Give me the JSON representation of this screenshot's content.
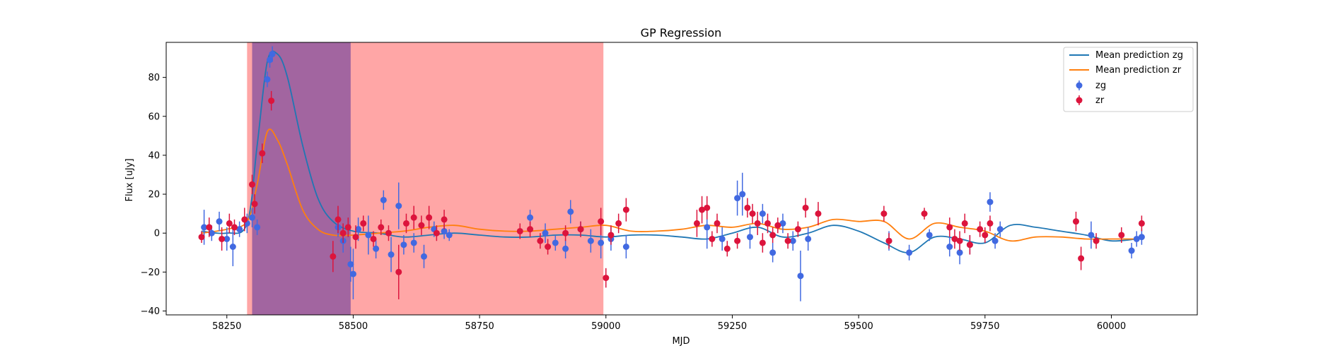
{
  "chart_data": {
    "type": "scatter",
    "title": "GP Regression",
    "xlabel": "MJD",
    "ylabel": "Flux [uJy]",
    "xlim": [
      58130,
      60170
    ],
    "ylim": [
      -42,
      98
    ],
    "x_ticks": [
      58250,
      58500,
      58750,
      59000,
      59250,
      59500,
      59750,
      60000
    ],
    "y_ticks": [
      -40,
      -20,
      0,
      20,
      40,
      60,
      80
    ],
    "legend_position": "top-right",
    "shaded_regions": [
      {
        "x0": 58290,
        "x1": 58995,
        "color": "#ff6b6b",
        "opacity": 0.6
      },
      {
        "x0": 58300,
        "x1": 58495,
        "color": "#7a4a9e",
        "opacity": 0.7
      }
    ],
    "series": [
      {
        "name": "Mean prediction zg",
        "kind": "line",
        "color": "#1f77b4",
        "x": [
          58200,
          58250,
          58290,
          58310,
          58330,
          58350,
          58370,
          58400,
          58430,
          58460,
          58500,
          58550,
          58600,
          58650,
          58700,
          58750,
          58800,
          58850,
          58900,
          58950,
          59000,
          59050,
          59100,
          59150,
          59200,
          59250,
          59300,
          59350,
          59400,
          59450,
          59500,
          59550,
          59600,
          59650,
          59700,
          59750,
          59800,
          59850,
          59900,
          59950,
          60000,
          60050
        ],
        "y": [
          1,
          0,
          5,
          45,
          88,
          92,
          80,
          45,
          18,
          6,
          1,
          0,
          -2,
          -1,
          0,
          -1,
          -2,
          -2,
          -1,
          -1,
          -2,
          -1,
          -1,
          -2,
          -3,
          0,
          3,
          -2,
          0,
          4,
          1,
          -5,
          -10,
          -2,
          -3,
          -5,
          4,
          3,
          1,
          -1,
          -4,
          -3
        ]
      },
      {
        "name": "Mean prediction zr",
        "kind": "line",
        "color": "#ff7f0e",
        "x": [
          58200,
          58250,
          58290,
          58310,
          58330,
          58350,
          58370,
          58400,
          58430,
          58460,
          58500,
          58550,
          58600,
          58650,
          58700,
          58750,
          58800,
          58850,
          58900,
          58950,
          59000,
          59050,
          59100,
          59150,
          59200,
          59250,
          59300,
          59350,
          59400,
          59450,
          59500,
          59550,
          59600,
          59650,
          59700,
          59750,
          59800,
          59850,
          59900,
          59950,
          60000,
          60050
        ],
        "y": [
          0,
          2,
          6,
          25,
          52,
          48,
          35,
          12,
          2,
          -1,
          -1,
          0,
          1,
          3,
          4,
          2,
          1,
          1,
          2,
          3,
          4,
          1,
          1,
          2,
          4,
          3,
          5,
          2,
          3,
          7,
          6,
          6,
          -3,
          5,
          3,
          1,
          -4,
          -2,
          -2,
          -3,
          -3,
          -3
        ]
      },
      {
        "name": "zg",
        "kind": "points",
        "color": "#4169e1",
        "x": [
          58205,
          58220,
          58235,
          58250,
          58262,
          58275,
          58290,
          58300,
          58310,
          58330,
          58335,
          58340,
          58470,
          58480,
          58495,
          58500,
          58510,
          58530,
          58545,
          58560,
          58575,
          58590,
          58600,
          58620,
          58640,
          58660,
          58680,
          58690,
          58850,
          58880,
          58900,
          58920,
          58930,
          58950,
          58970,
          58990,
          59010,
          59040,
          59200,
          59230,
          59260,
          59270,
          59285,
          59310,
          59330,
          59350,
          59370,
          59385,
          59400,
          59560,
          59600,
          59640,
          59680,
          59700,
          59720,
          59760,
          59770,
          59780,
          59960,
          60040,
          60050,
          60060
        ],
        "y": [
          3,
          0,
          6,
          -3,
          -7,
          2,
          5,
          8,
          3,
          79,
          89,
          92,
          3,
          -4,
          -16,
          -21,
          2,
          -1,
          -8,
          17,
          -11,
          14,
          -6,
          -5,
          -12,
          2,
          1,
          -1,
          8,
          0,
          -5,
          -8,
          11,
          2,
          -4,
          -5,
          -3,
          -7,
          3,
          -3,
          18,
          20,
          -2,
          10,
          -10,
          5,
          -4,
          -22,
          -3,
          -4,
          -10,
          -1,
          -7,
          -10,
          -6,
          16,
          -4,
          2,
          -1,
          -9,
          -3,
          -2
        ],
        "err": [
          9,
          4,
          5,
          6,
          10,
          4,
          5,
          5,
          4,
          4,
          4,
          4,
          5,
          6,
          9,
          13,
          6,
          10,
          5,
          5,
          9,
          12,
          5,
          5,
          6,
          4,
          4,
          3,
          4,
          5,
          4,
          5,
          6,
          4,
          6,
          8,
          6,
          6,
          11,
          6,
          9,
          11,
          6,
          5,
          5,
          5,
          5,
          13,
          6,
          5,
          4,
          3,
          5,
          6,
          5,
          5,
          4,
          4,
          7,
          4,
          4,
          4
        ]
      },
      {
        "name": "zr",
        "kind": "points",
        "color": "#dc143c",
        "x": [
          58200,
          58215,
          58240,
          58255,
          58265,
          58285,
          58300,
          58305,
          58320,
          58338,
          58460,
          58470,
          58480,
          58490,
          58505,
          58520,
          58540,
          58555,
          58570,
          58590,
          58605,
          58620,
          58635,
          58650,
          58665,
          58680,
          58830,
          58850,
          58870,
          58885,
          58920,
          58950,
          58990,
          59000,
          59010,
          59025,
          59040,
          59180,
          59190,
          59200,
          59210,
          59220,
          59240,
          59260,
          59280,
          59290,
          59300,
          59310,
          59320,
          59330,
          59340,
          59360,
          59380,
          59395,
          59420,
          59550,
          59560,
          59630,
          59680,
          59690,
          59700,
          59710,
          59720,
          59740,
          59750,
          59760,
          59930,
          59940,
          59970,
          60020,
          60060
        ],
        "y": [
          -2,
          3,
          -3,
          5,
          3,
          7,
          25,
          15,
          41,
          68,
          -12,
          7,
          0,
          3,
          -2,
          5,
          -3,
          3,
          0,
          -20,
          5,
          8,
          4,
          8,
          0,
          7,
          1,
          2,
          -4,
          -7,
          0,
          2,
          6,
          -23,
          -1,
          5,
          12,
          5,
          12,
          13,
          -3,
          5,
          -8,
          -4,
          13,
          10,
          5,
          -5,
          5,
          -1,
          4,
          -4,
          2,
          13,
          10,
          10,
          -4,
          10,
          3,
          -3,
          -4,
          5,
          -6,
          2,
          -1,
          5,
          6,
          -13,
          -4,
          -1,
          5
        ],
        "err": [
          3,
          5,
          6,
          5,
          4,
          6,
          5,
          5,
          5,
          5,
          8,
          7,
          5,
          5,
          6,
          4,
          4,
          4,
          4,
          14,
          5,
          6,
          5,
          6,
          4,
          5,
          4,
          4,
          4,
          4,
          4,
          4,
          7,
          5,
          5,
          5,
          6,
          7,
          7,
          6,
          4,
          5,
          4,
          4,
          5,
          5,
          6,
          5,
          5,
          4,
          4,
          4,
          4,
          5,
          6,
          4,
          4,
          3,
          5,
          5,
          5,
          5,
          5,
          4,
          4,
          4,
          5,
          6,
          4,
          4,
          4
        ]
      }
    ]
  }
}
